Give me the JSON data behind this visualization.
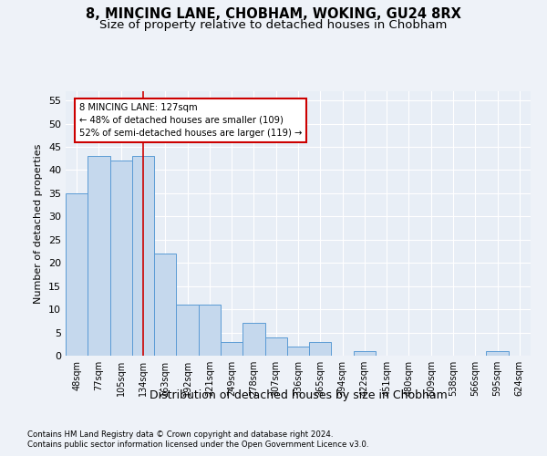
{
  "title": "8, MINCING LANE, CHOBHAM, WOKING, GU24 8RX",
  "subtitle": "Size of property relative to detached houses in Chobham",
  "xlabel": "Distribution of detached houses by size in Chobham",
  "ylabel": "Number of detached properties",
  "categories": [
    "48sqm",
    "77sqm",
    "105sqm",
    "134sqm",
    "163sqm",
    "192sqm",
    "221sqm",
    "249sqm",
    "278sqm",
    "307sqm",
    "336sqm",
    "365sqm",
    "394sqm",
    "422sqm",
    "451sqm",
    "480sqm",
    "509sqm",
    "538sqm",
    "566sqm",
    "595sqm",
    "624sqm"
  ],
  "values": [
    35,
    43,
    42,
    43,
    22,
    11,
    11,
    3,
    7,
    4,
    2,
    3,
    0,
    1,
    0,
    0,
    0,
    0,
    0,
    1,
    0
  ],
  "bar_color": "#c5d8ed",
  "bar_edge_color": "#5b9bd5",
  "bar_width": 1.0,
  "ylim": [
    0,
    57
  ],
  "yticks": [
    0,
    5,
    10,
    15,
    20,
    25,
    30,
    35,
    40,
    45,
    50,
    55
  ],
  "red_line_x": 3.5,
  "red_line_label": "8 MINCING LANE: 127sqm",
  "annotation_line1": "← 48% of detached houses are smaller (109)",
  "annotation_line2": "52% of semi-detached houses are larger (119) →",
  "annotation_box_color": "#ffffff",
  "annotation_box_edge": "#cc0000",
  "footnote1": "Contains HM Land Registry data © Crown copyright and database right 2024.",
  "footnote2": "Contains public sector information licensed under the Open Government Licence v3.0.",
  "bg_color": "#eef2f8",
  "plot_bg_color": "#e8eef6",
  "grid_color": "#ffffff",
  "title_fontsize": 10.5,
  "subtitle_fontsize": 9.5
}
